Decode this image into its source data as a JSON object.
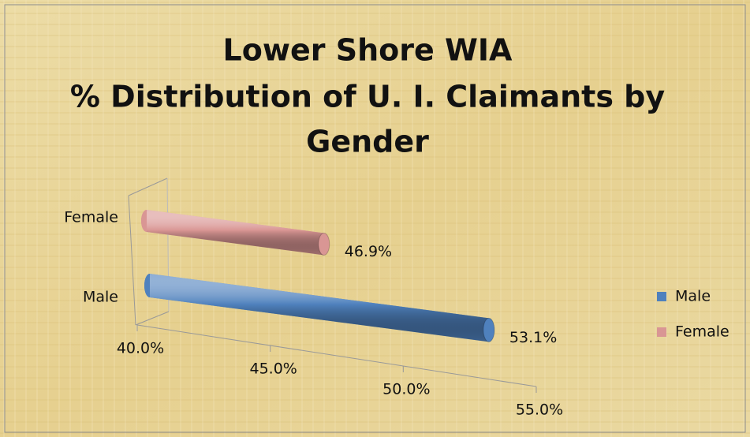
{
  "chart_data": {
    "type": "bar3d_horizontal",
    "title": [
      "Lower Shore WIA",
      "% Distribution of U. I. Claimants by",
      "Gender"
    ],
    "categories": [
      "Male",
      "Female"
    ],
    "values": [
      53.1,
      46.9
    ],
    "value_labels": [
      "53.1%",
      "46.9%"
    ],
    "colors": [
      "#4f81bd",
      "#d99694"
    ],
    "xlim": [
      40,
      55
    ],
    "xticks": [
      {
        "value": 40,
        "label": "40.0%"
      },
      {
        "value": 45,
        "label": "45.0%"
      },
      {
        "value": 50,
        "label": "50.0%"
      },
      {
        "value": 55,
        "label": "55.0%"
      }
    ],
    "legend": "right"
  }
}
